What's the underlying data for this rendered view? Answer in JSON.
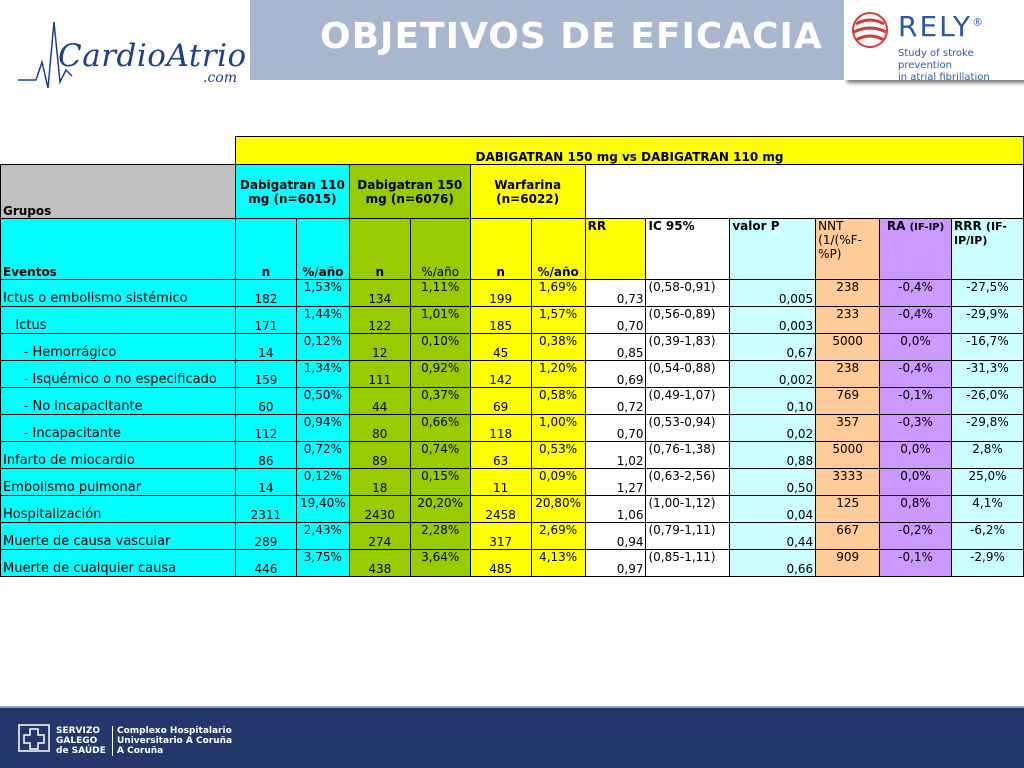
{
  "header": {
    "title": "OBJETIVOS DE EFICACIA",
    "logo_left": {
      "main": "CardioAtrio",
      "main_a": "Cardio",
      "main_b": "Atrio",
      "sub": ".com"
    },
    "logo_right": {
      "name": "RELY",
      "reg": "®",
      "line1": "Study of stroke prevention",
      "line2": "in atrial fibrillation"
    }
  },
  "table": {
    "comparison_header": "DABIGATRAN 150 mg vs DABIGATRAN 110 mg",
    "groups_label": "Grupos",
    "events_label": "Eventos",
    "group_dab110": "Dabigatran 110 mg (n=6015)",
    "group_dab150": "Dabigatran 150 mg (n=6076)",
    "group_warf": "Warfarina (n=6022)",
    "col_n": "n",
    "col_pct": "%/año",
    "col_rr": "RR",
    "col_ic": "IC 95%",
    "col_p": "valor P",
    "col_nnt": "NNT (1/(%F-%P)",
    "col_ra": "RA",
    "col_ra_sub": "(IF-IP)",
    "col_rrr": "RRR",
    "col_rrr_sub": "(IF-IP/IP)",
    "rows": [
      {
        "label": "Ictus o embolismo sistémico",
        "n110": "182",
        "p110": "1,53%",
        "n150": "134",
        "p150": "1,11%",
        "nw": "199",
        "pw": "1,69%",
        "rr": "0,73",
        "ic": "(0,58-0,91)",
        "p": "0,005",
        "nnt": "238",
        "ra": "-0,4%",
        "rrr": "-27,5%"
      },
      {
        "label": "   Ictus",
        "n110": "171",
        "p110": "1,44%",
        "n150": "122",
        "p150": "1,01%",
        "nw": "185",
        "pw": "1,57%",
        "rr": "0,70",
        "ic": "(0,56-0,89)",
        "p": "0,003",
        "nnt": "233",
        "ra": "-0,4%",
        "rrr": "-29,9%"
      },
      {
        "label": "     - Hemorrágico",
        "n110": "14",
        "p110": "0,12%",
        "n150": "12",
        "p150": "0,10%",
        "nw": "45",
        "pw": "0,38%",
        "rr": "0,85",
        "ic": "(0,39-1,83)",
        "p": "0,67",
        "nnt": "5000",
        "ra": "0,0%",
        "rrr": "-16,7%"
      },
      {
        "label": "     - Isquémico o no especificado",
        "n110": "159",
        "p110": "1,34%",
        "n150": "111",
        "p150": "0,92%",
        "nw": "142",
        "pw": "1,20%",
        "rr": "0,69",
        "ic": "(0,54-0,88)",
        "p": "0,002",
        "nnt": "238",
        "ra": "-0,4%",
        "rrr": "-31,3%"
      },
      {
        "label": "     - No incapacitante",
        "n110": "60",
        "p110": "0,50%",
        "n150": "44",
        "p150": "0,37%",
        "nw": "69",
        "pw": "0,58%",
        "rr": "0,72",
        "ic": "(0,49-1,07)",
        "p": "0,10",
        "nnt": "769",
        "ra": "-0,1%",
        "rrr": "-26,0%"
      },
      {
        "label": "     - Incapacitante",
        "n110": "112",
        "p110": "0,94%",
        "n150": "80",
        "p150": "0,66%",
        "nw": "118",
        "pw": "1,00%",
        "rr": "0,70",
        "ic": "(0,53-0,94)",
        "p": "0,02",
        "nnt": "357",
        "ra": "-0,3%",
        "rrr": "-29,8%"
      },
      {
        "label": "Infarto de miocardio",
        "n110": "86",
        "p110": "0,72%",
        "n150": "89",
        "p150": "0,74%",
        "nw": "63",
        "pw": "0,53%",
        "rr": "1,02",
        "ic": "(0,76-1,38)",
        "p": "0,88",
        "nnt": "5000",
        "ra": "0,0%",
        "rrr": "2,8%"
      },
      {
        "label": "Embolismo pulmonar",
        "n110": "14",
        "p110": "0,12%",
        "n150": "18",
        "p150": "0,15%",
        "nw": "11",
        "pw": "0,09%",
        "rr": "1,27",
        "ic": "(0,63-2,56)",
        "p": "0,50",
        "nnt": "3333",
        "ra": "0,0%",
        "rrr": "25,0%"
      },
      {
        "label": "Hospitalización",
        "n110": "2311",
        "p110": "19,40%",
        "n150": "2430",
        "p150": "20,20%",
        "nw": "2458",
        "pw": "20,80%",
        "rr": "1,06",
        "ic": "(1,00-1,12)",
        "p": "0,04",
        "nnt": "125",
        "ra": "0,8%",
        "rrr": "4,1%"
      },
      {
        "label": "Muerte de causa vascular",
        "n110": "289",
        "p110": "2,43%",
        "n150": "274",
        "p150": "2,28%",
        "nw": "317",
        "pw": "2,69%",
        "rr": "0,94",
        "ic": "(0,79-1,11)",
        "p": "0,44",
        "nnt": "667",
        "ra": "-0,2%",
        "rrr": "-6,2%"
      },
      {
        "label": "Muerte de cualquier causa",
        "n110": "446",
        "p110": "3,75%",
        "n150": "438",
        "p150": "3,64%",
        "nw": "485",
        "pw": "4,13%",
        "rr": "0,97",
        "ic": "(0,85-1,11)",
        "p": "0,66",
        "nnt": "909",
        "ra": "-0,1%",
        "rrr": "-2,9%"
      }
    ]
  },
  "footer": {
    "org": [
      "SERVIZO",
      "GALEGO",
      "de SAÚDE"
    ],
    "hospital": [
      "Complexo Hospitalario",
      "Universitario A Coruña",
      "A Coruña"
    ]
  },
  "colors": {
    "header_bg": "#a9b7ce",
    "footer_bg": "#23376a",
    "cyan": "#00ffff",
    "yellow": "#ffff00",
    "green": "#99cc00",
    "light_cyan": "#ccffff",
    "orange": "#ffcc99",
    "purple": "#cc99ff",
    "grey": "#c0c0c0"
  },
  "icons": [
    "ecg-line-icon",
    "rely-sphere-icon",
    "cross-emblem-icon"
  ]
}
